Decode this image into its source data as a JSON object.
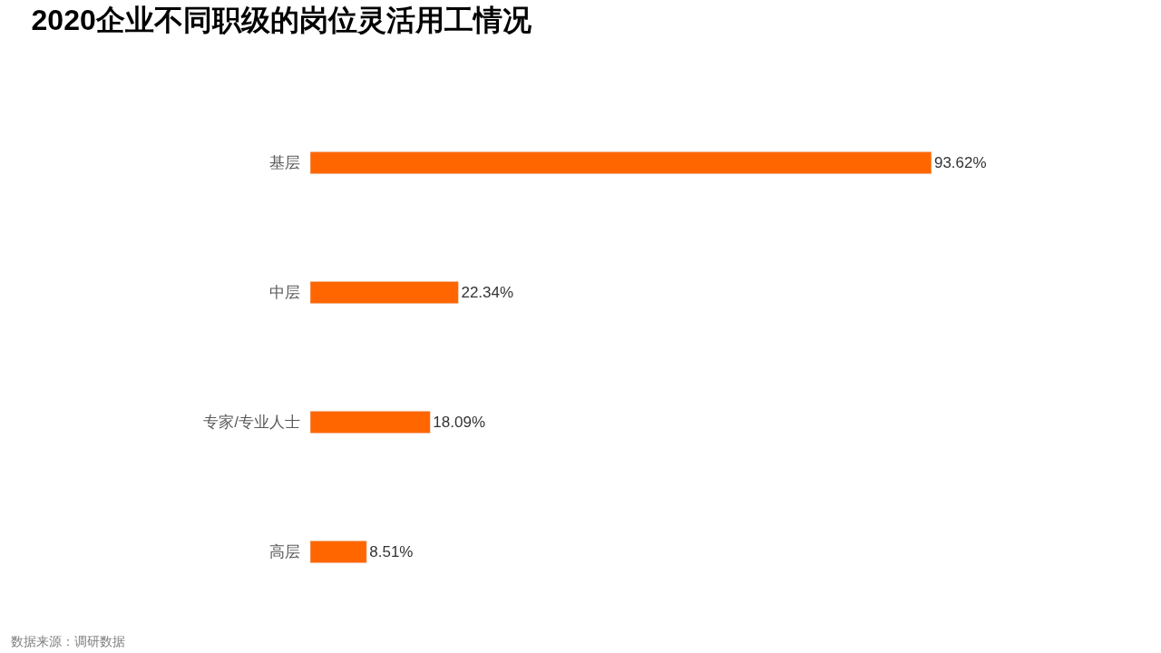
{
  "chart_data": {
    "type": "bar",
    "orientation": "horizontal",
    "title": "2020企业不同职级的岗位灵活用工情况",
    "categories": [
      "基层",
      "中层",
      "专家/专业人士",
      "高层"
    ],
    "values": [
      93.62,
      22.34,
      18.09,
      8.51
    ],
    "value_labels": [
      "93.62%",
      "22.34%",
      "18.09%",
      "8.51%"
    ],
    "color": "#ff6600",
    "annotations": [
      "数据来源：调研数据"
    ]
  }
}
